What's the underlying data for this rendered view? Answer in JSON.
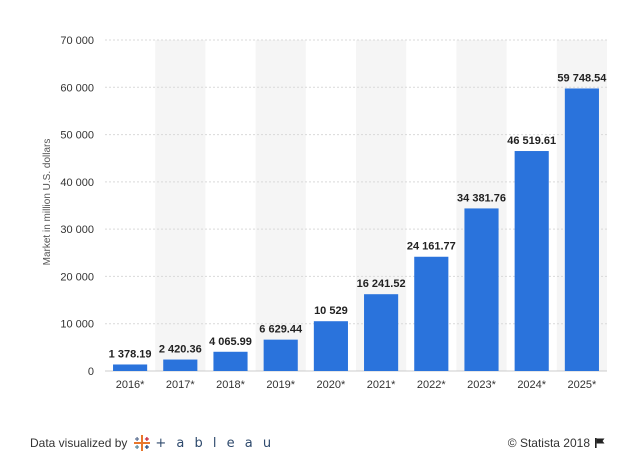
{
  "chart_data": {
    "type": "bar",
    "categories": [
      "2016*",
      "2017*",
      "2018*",
      "2019*",
      "2020*",
      "2021*",
      "2022*",
      "2023*",
      "2024*",
      "2025*"
    ],
    "values": [
      1378.19,
      2420.36,
      4065.99,
      6629.44,
      10529,
      16241.52,
      24161.77,
      34381.76,
      46519.61,
      59748.54
    ],
    "value_labels": [
      "1 378.19",
      "2 420.36",
      "4 065.99",
      "6 629.44",
      "10 529",
      "16 241.52",
      "24 161.77",
      "34 381.76",
      "46 519.61",
      "59 748.54"
    ],
    "ylabel": "Market in million U.S. dollars",
    "ylim": [
      0,
      70000
    ],
    "yticks": [
      0,
      10000,
      20000,
      30000,
      40000,
      50000,
      60000,
      70000
    ],
    "ytick_labels": [
      "0",
      "10 000",
      "20 000",
      "30 000",
      "40 000",
      "50 000",
      "60 000",
      "70 000"
    ],
    "grid": true,
    "bar_color": "#2a73dc",
    "alt_band_color": "#f5f5f5"
  },
  "footer": {
    "credit_prefix": "Data visualized by",
    "tableau_word": "+ a b l e a u",
    "copyright": "© Statista 2018"
  }
}
